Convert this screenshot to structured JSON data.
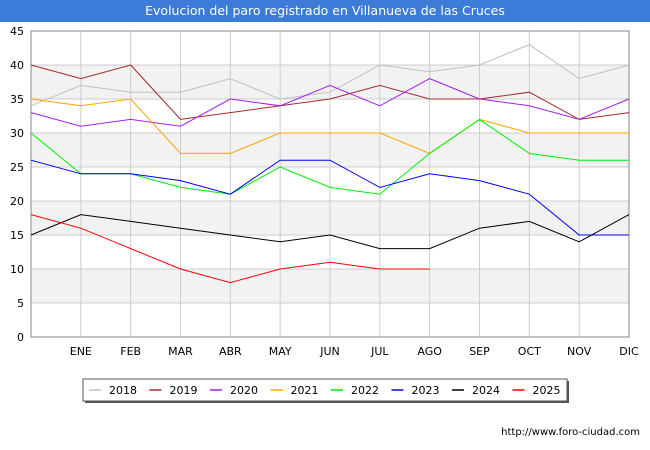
{
  "title": "Evolucion del paro registrado en Villanueva de las Cruces",
  "credit": "http://www.foro-ciudad.com",
  "colors": {
    "title_bg": "#3d7bd8",
    "band": "#f2f2f2",
    "grid": "#cccccc"
  },
  "chart_data": {
    "type": "line",
    "title": "Evolucion del paro registrado en Villanueva de las Cruces",
    "xlabel": "",
    "ylabel": "",
    "x": [
      "",
      "ENE",
      "FEB",
      "MAR",
      "ABR",
      "MAY",
      "JUN",
      "JUL",
      "AGO",
      "SEP",
      "OCT",
      "NOV",
      "DIC"
    ],
    "ylim": [
      0,
      45
    ],
    "yticks": [
      0,
      5,
      10,
      15,
      20,
      25,
      30,
      35,
      40,
      45
    ],
    "grid": true,
    "legend_position": "bottom",
    "series": [
      {
        "name": "2018",
        "color": "#c0c0c0",
        "values": [
          34,
          37,
          36,
          36,
          38,
          35,
          36,
          40,
          39,
          40,
          43,
          38,
          40
        ]
      },
      {
        "name": "2019",
        "color": "#a52a2a",
        "values": [
          40,
          38,
          40,
          32,
          33,
          34,
          35,
          37,
          35,
          35,
          36,
          32,
          33
        ]
      },
      {
        "name": "2020",
        "color": "#a020f0",
        "values": [
          33,
          31,
          32,
          31,
          35,
          34,
          37,
          34,
          38,
          35,
          34,
          32,
          35
        ]
      },
      {
        "name": "2021",
        "color": "#ffa500",
        "values": [
          35,
          34,
          35,
          27,
          27,
          30,
          30,
          30,
          27,
          32,
          30,
          30,
          30
        ]
      },
      {
        "name": "2022",
        "color": "#00ee00",
        "values": [
          30,
          24,
          24,
          22,
          21,
          25,
          22,
          21,
          27,
          32,
          27,
          26,
          26
        ]
      },
      {
        "name": "2023",
        "color": "#0000ff",
        "values": [
          26,
          24,
          24,
          23,
          21,
          26,
          26,
          22,
          24,
          23,
          21,
          15,
          15
        ]
      },
      {
        "name": "2024",
        "color": "#000000",
        "values": [
          15,
          18,
          17,
          16,
          15,
          14,
          15,
          13,
          13,
          16,
          17,
          14,
          18
        ]
      },
      {
        "name": "2025",
        "color": "#ff0000",
        "values": [
          18,
          16,
          13,
          10,
          8,
          10,
          11,
          10,
          10,
          null,
          null,
          null,
          null
        ]
      }
    ]
  }
}
